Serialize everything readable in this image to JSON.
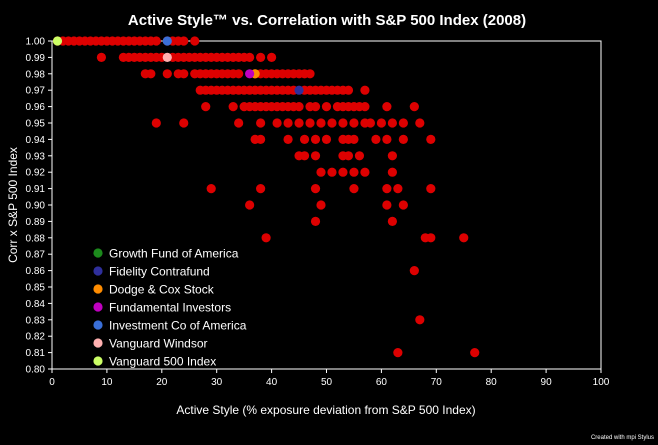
{
  "chart_data": {
    "type": "scatter",
    "title": "Active Style™ vs. Correlation with S&P 500 Index (2008)",
    "xlabel": "Active Style (% exposure deviation from S&P 500 Index)",
    "ylabel": "Corr x S&P 500 Index",
    "xlim": [
      0,
      100
    ],
    "ylim": [
      0.8,
      1.0
    ],
    "x_ticks": [
      "0",
      "10",
      "20",
      "30",
      "40",
      "50",
      "60",
      "70",
      "80",
      "90",
      "100"
    ],
    "y_ticks": [
      "0.80",
      "0.81",
      "0.82",
      "0.83",
      "0.84",
      "0.85",
      "0.86",
      "0.87",
      "0.88",
      "0.89",
      "0.90",
      "0.91",
      "0.92",
      "0.93",
      "0.94",
      "0.95",
      "0.96",
      "0.97",
      "0.98",
      "0.99",
      "1.00"
    ],
    "grid": false,
    "legend_position": "bottom-left",
    "credit": "Created with mpi Stylus",
    "background_color": "#000000",
    "series": [
      {
        "color": "#dd0000",
        "points": [
          [
            1,
            1.0
          ],
          [
            2,
            1.0
          ],
          [
            3,
            1.0
          ],
          [
            4,
            1.0
          ],
          [
            5,
            1.0
          ],
          [
            6,
            1.0
          ],
          [
            7,
            1.0
          ],
          [
            8,
            1.0
          ],
          [
            9,
            1.0
          ],
          [
            10,
            1.0
          ],
          [
            11,
            1.0
          ],
          [
            12,
            1.0
          ],
          [
            13,
            1.0
          ],
          [
            14,
            1.0
          ],
          [
            15,
            1.0
          ],
          [
            16,
            1.0
          ],
          [
            17,
            1.0
          ],
          [
            18,
            1.0
          ],
          [
            19,
            1.0
          ],
          [
            21,
            1.0
          ],
          [
            22,
            1.0
          ],
          [
            23,
            1.0
          ],
          [
            24,
            1.0
          ],
          [
            26,
            1.0
          ],
          [
            9,
            0.99
          ],
          [
            13,
            0.99
          ],
          [
            14,
            0.99
          ],
          [
            15,
            0.99
          ],
          [
            16,
            0.99
          ],
          [
            17,
            0.99
          ],
          [
            18,
            0.99
          ],
          [
            19,
            0.99
          ],
          [
            20,
            0.99
          ],
          [
            22,
            0.99
          ],
          [
            23,
            0.99
          ],
          [
            24,
            0.99
          ],
          [
            25,
            0.99
          ],
          [
            26,
            0.99
          ],
          [
            27,
            0.99
          ],
          [
            28,
            0.99
          ],
          [
            29,
            0.99
          ],
          [
            30,
            0.99
          ],
          [
            31,
            0.99
          ],
          [
            32,
            0.99
          ],
          [
            33,
            0.99
          ],
          [
            34,
            0.99
          ],
          [
            35,
            0.99
          ],
          [
            36,
            0.99
          ],
          [
            38,
            0.99
          ],
          [
            40,
            0.99
          ],
          [
            17,
            0.98
          ],
          [
            18,
            0.98
          ],
          [
            21,
            0.98
          ],
          [
            23,
            0.98
          ],
          [
            24,
            0.98
          ],
          [
            26,
            0.98
          ],
          [
            27,
            0.98
          ],
          [
            28,
            0.98
          ],
          [
            29,
            0.98
          ],
          [
            30,
            0.98
          ],
          [
            31,
            0.98
          ],
          [
            32,
            0.98
          ],
          [
            33,
            0.98
          ],
          [
            34,
            0.98
          ],
          [
            37,
            0.98
          ],
          [
            38,
            0.98
          ],
          [
            39,
            0.98
          ],
          [
            40,
            0.98
          ],
          [
            41,
            0.98
          ],
          [
            42,
            0.98
          ],
          [
            43,
            0.98
          ],
          [
            44,
            0.98
          ],
          [
            45,
            0.98
          ],
          [
            46,
            0.98
          ],
          [
            47,
            0.98
          ],
          [
            27,
            0.97
          ],
          [
            28,
            0.97
          ],
          [
            29,
            0.97
          ],
          [
            30,
            0.97
          ],
          [
            31,
            0.97
          ],
          [
            32,
            0.97
          ],
          [
            33,
            0.97
          ],
          [
            34,
            0.97
          ],
          [
            35,
            0.97
          ],
          [
            36,
            0.97
          ],
          [
            37,
            0.97
          ],
          [
            38,
            0.97
          ],
          [
            39,
            0.97
          ],
          [
            40,
            0.97
          ],
          [
            41,
            0.97
          ],
          [
            42,
            0.97
          ],
          [
            43,
            0.97
          ],
          [
            44,
            0.97
          ],
          [
            46,
            0.97
          ],
          [
            47,
            0.97
          ],
          [
            48,
            0.97
          ],
          [
            49,
            0.97
          ],
          [
            50,
            0.97
          ],
          [
            51,
            0.97
          ],
          [
            52,
            0.97
          ],
          [
            53,
            0.97
          ],
          [
            54,
            0.97
          ],
          [
            57,
            0.97
          ],
          [
            28,
            0.96
          ],
          [
            33,
            0.96
          ],
          [
            35,
            0.96
          ],
          [
            36,
            0.96
          ],
          [
            37,
            0.96
          ],
          [
            38,
            0.96
          ],
          [
            39,
            0.96
          ],
          [
            40,
            0.96
          ],
          [
            41,
            0.96
          ],
          [
            42,
            0.96
          ],
          [
            43,
            0.96
          ],
          [
            44,
            0.96
          ],
          [
            45,
            0.96
          ],
          [
            47,
            0.96
          ],
          [
            48,
            0.96
          ],
          [
            50,
            0.96
          ],
          [
            52,
            0.96
          ],
          [
            53,
            0.96
          ],
          [
            54,
            0.96
          ],
          [
            55,
            0.96
          ],
          [
            56,
            0.96
          ],
          [
            57,
            0.96
          ],
          [
            61,
            0.96
          ],
          [
            66,
            0.96
          ],
          [
            19,
            0.95
          ],
          [
            24,
            0.95
          ],
          [
            34,
            0.95
          ],
          [
            38,
            0.95
          ],
          [
            41,
            0.95
          ],
          [
            43,
            0.95
          ],
          [
            45,
            0.95
          ],
          [
            47,
            0.95
          ],
          [
            49,
            0.95
          ],
          [
            51,
            0.95
          ],
          [
            53,
            0.95
          ],
          [
            55,
            0.95
          ],
          [
            57,
            0.95
          ],
          [
            58,
            0.95
          ],
          [
            60,
            0.95
          ],
          [
            62,
            0.95
          ],
          [
            64,
            0.95
          ],
          [
            67,
            0.95
          ],
          [
            37,
            0.94
          ],
          [
            38,
            0.94
          ],
          [
            43,
            0.94
          ],
          [
            46,
            0.94
          ],
          [
            48,
            0.94
          ],
          [
            50,
            0.94
          ],
          [
            53,
            0.94
          ],
          [
            54,
            0.94
          ],
          [
            55,
            0.94
          ],
          [
            59,
            0.94
          ],
          [
            61,
            0.94
          ],
          [
            64,
            0.94
          ],
          [
            69,
            0.94
          ],
          [
            45,
            0.93
          ],
          [
            46,
            0.93
          ],
          [
            48,
            0.93
          ],
          [
            53,
            0.93
          ],
          [
            54,
            0.93
          ],
          [
            56,
            0.93
          ],
          [
            62,
            0.93
          ],
          [
            49,
            0.92
          ],
          [
            51,
            0.92
          ],
          [
            53,
            0.92
          ],
          [
            55,
            0.92
          ],
          [
            57,
            0.92
          ],
          [
            62,
            0.92
          ],
          [
            29,
            0.91
          ],
          [
            38,
            0.91
          ],
          [
            48,
            0.91
          ],
          [
            55,
            0.91
          ],
          [
            61,
            0.91
          ],
          [
            63,
            0.91
          ],
          [
            69,
            0.91
          ],
          [
            36,
            0.9
          ],
          [
            49,
            0.9
          ],
          [
            61,
            0.9
          ],
          [
            64,
            0.9
          ],
          [
            48,
            0.89
          ],
          [
            62,
            0.89
          ],
          [
            39,
            0.88
          ],
          [
            68,
            0.88
          ],
          [
            69,
            0.88
          ],
          [
            75,
            0.88
          ],
          [
            66,
            0.86
          ],
          [
            67,
            0.83
          ],
          [
            63,
            0.81
          ],
          [
            77,
            0.81
          ]
        ]
      }
    ],
    "highlighted": [
      {
        "name": "Growth Fund of America",
        "color": "#1c8a1c"
      },
      {
        "name": "Fidelity Contrafund",
        "color": "#2f2f9c",
        "x": 45,
        "y": 0.97
      },
      {
        "name": "Dodge & Cox Stock",
        "color": "#ff8c00",
        "x": 37,
        "y": 0.98
      },
      {
        "name": "Fundamental Investors",
        "color": "#c000c0",
        "x": 36,
        "y": 0.98
      },
      {
        "name": "Investment Co of America",
        "color": "#3a6fd8",
        "x": 21,
        "y": 1.0
      },
      {
        "name": "Vanguard Windsor",
        "color": "#ffb0b0",
        "x": 21,
        "y": 0.99
      },
      {
        "name": "Vanguard 500 Index",
        "color": "#ccff66",
        "x": 1,
        "y": 1.0
      }
    ]
  }
}
